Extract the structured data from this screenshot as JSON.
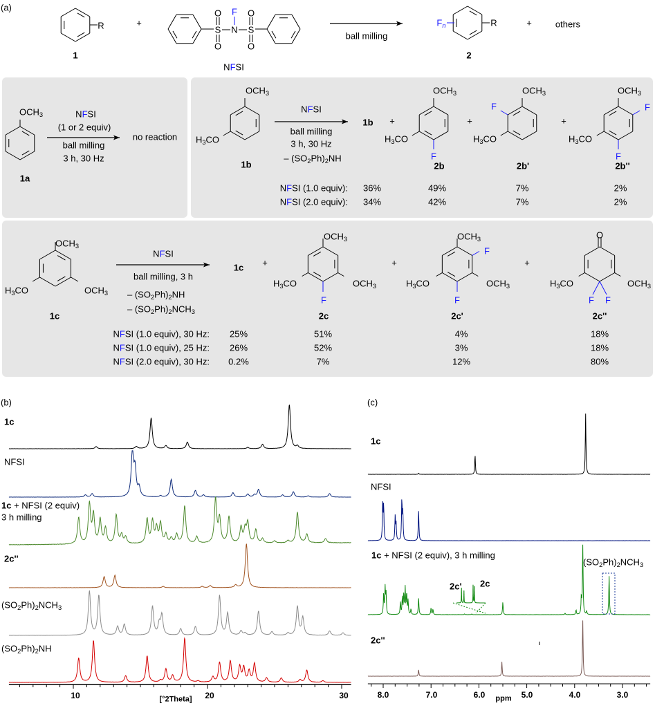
{
  "figure": {
    "panel_a_label": "(a)",
    "panel_b_label": "(b)",
    "panel_c_label": "(c)"
  },
  "general_scheme": {
    "reactant_R": "R",
    "reactant_label": "1",
    "plus1": "+",
    "nfsi_atoms": {
      "S1": "S",
      "N": "N",
      "S2": "S",
      "O1": "O",
      "O2": "O",
      "O3": "O",
      "O4": "O",
      "F": "F"
    },
    "nfsi_label": "NFSI",
    "arrow_condition": "ball milling",
    "product_Fn": "Fn",
    "product_R": "R",
    "product_label": "2",
    "plus2": "+",
    "others": "others"
  },
  "anisole_box": {
    "substituent": "OCH3",
    "reagent": "NFSI",
    "equiv": "(1 or 2 equiv)",
    "cond1": "ball milling",
    "cond2": "3 h, 30 Hz",
    "result": "no reaction",
    "label": "1a"
  },
  "dimethoxy_box": {
    "sm_top": "OCH3",
    "sm_left": "H3CO",
    "sm_label": "1b",
    "reagent": "NFSI",
    "cond1": "ball milling",
    "cond2": "3 h, 30 Hz",
    "cond3": "– (SO2Ph)2NH",
    "recovered": "1b",
    "plus": "+",
    "products": [
      {
        "label": "2b",
        "top": "OCH3",
        "left": "H3CO",
        "F1": "F"
      },
      {
        "label": "2b'",
        "top": "OCH3",
        "left": "H3CO",
        "F1": "F"
      },
      {
        "label": "2b''",
        "top": "OCH3",
        "left": "H3CO",
        "F1": "F",
        "F2": "F"
      }
    ],
    "rows": [
      {
        "label": "NFSI (1.0 equiv):",
        "values": [
          "36%",
          "49%",
          "7%",
          "2%"
        ]
      },
      {
        "label": "NFSI (2.0 equiv):",
        "values": [
          "34%",
          "42%",
          "7%",
          "2%"
        ]
      }
    ]
  },
  "trimethoxy_box": {
    "sm_top": "OCH3",
    "sm_left": "H3CO",
    "sm_right": "OCH3",
    "sm_label": "1c",
    "reagent": "NFSI",
    "cond1": "ball milling, 3 h",
    "cond2": "– (SO2Ph)2NH",
    "cond3": "– (SO2Ph)2NCH3",
    "recovered": "1c",
    "plus": "+",
    "products": [
      {
        "label": "2c",
        "top": "OCH3",
        "left": "H3CO",
        "right": "OCH3",
        "F1": "F"
      },
      {
        "label": "2c'",
        "top": "OCH3",
        "left": "H3CO",
        "right": "OCH3",
        "F1": "F",
        "F2": "F"
      },
      {
        "label": "2c''",
        "top": "O",
        "left": "H3CO",
        "right": "OCH3",
        "F1": "F",
        "F2": "F"
      }
    ],
    "rows": [
      {
        "label": "NFSI (1.0 equiv), 30 Hz:",
        "values": [
          "25%",
          "51%",
          "4%",
          "18%"
        ]
      },
      {
        "label": "NFSI (1.0 equiv), 25 Hz:",
        "values": [
          "26%",
          "52%",
          "3%",
          "18%"
        ]
      },
      {
        "label": "NFSI (2.0 equiv), 30 Hz:",
        "values": [
          "0.2%",
          "7%",
          "12%",
          "80%"
        ]
      }
    ]
  },
  "colors": {
    "fluorine": "#1a1aff",
    "panel_bg": "#e6e6e6"
  },
  "chart_data": [
    {
      "type": "line",
      "title": "",
      "xlabel": "[°2Theta]",
      "xlim": [
        5.2,
        30.7
      ],
      "xticks": [
        10,
        20,
        30
      ],
      "grid": false,
      "series": [
        {
          "name": "1c",
          "color": "#000000",
          "peaks": [
            [
              11.7,
              0.05
            ],
            [
              14.7,
              0.05
            ],
            [
              15.8,
              0.7
            ],
            [
              16.9,
              0.07
            ],
            [
              18.5,
              0.15
            ],
            [
              23.0,
              0.03
            ],
            [
              24.1,
              0.1
            ],
            [
              26.1,
              1.0
            ],
            [
              26.7,
              0.06
            ]
          ]
        },
        {
          "name": "NFSI",
          "color": "#0d2a7a",
          "peaks": [
            [
              10.9,
              0.05
            ],
            [
              11.4,
              0.08
            ],
            [
              14.4,
              1.0
            ],
            [
              14.6,
              0.6
            ],
            [
              14.9,
              0.2
            ],
            [
              16.5,
              0.03
            ],
            [
              17.3,
              0.4
            ],
            [
              19.1,
              0.15
            ],
            [
              19.7,
              0.05
            ],
            [
              21.9,
              0.1
            ],
            [
              23.0,
              0.07
            ],
            [
              23.5,
              0.05
            ],
            [
              23.8,
              0.17
            ],
            [
              25.6,
              0.05
            ],
            [
              26.4,
              0.12
            ],
            [
              27.5,
              0.03
            ],
            [
              29.1,
              0.08
            ]
          ]
        },
        {
          "name": "1c + NFSI (2 equiv) 3 h milling",
          "label_line1": "1c + NFSI (2 equiv)",
          "label_line2": "3 h milling",
          "color": "#4e8a2e",
          "peaks": [
            [
              10.4,
              0.6
            ],
            [
              11.2,
              0.9
            ],
            [
              11.5,
              0.65
            ],
            [
              12.0,
              0.55
            ],
            [
              12.4,
              0.35
            ],
            [
              13.2,
              0.65
            ],
            [
              13.6,
              0.2
            ],
            [
              13.9,
              0.15
            ],
            [
              15.5,
              0.55
            ],
            [
              15.9,
              0.5
            ],
            [
              16.2,
              0.35
            ],
            [
              16.5,
              0.45
            ],
            [
              16.9,
              0.2
            ],
            [
              17.3,
              0.12
            ],
            [
              17.7,
              0.2
            ],
            [
              18.3,
              0.85
            ],
            [
              19.2,
              0.15
            ],
            [
              20.6,
              1.0
            ],
            [
              20.9,
              0.55
            ],
            [
              21.6,
              0.6
            ],
            [
              22.5,
              0.35
            ],
            [
              22.8,
              0.3
            ],
            [
              23.0,
              0.45
            ],
            [
              23.6,
              0.3
            ],
            [
              24.1,
              0.1
            ],
            [
              25.0,
              0.05
            ],
            [
              26.0,
              0.05
            ],
            [
              26.7,
              0.7
            ],
            [
              27.4,
              0.2
            ],
            [
              28.8,
              0.1
            ]
          ]
        },
        {
          "name": "2c''",
          "color": "#a0521e",
          "peaks": [
            [
              12.3,
              0.25
            ],
            [
              13.1,
              0.28
            ],
            [
              16.7,
              0.03
            ],
            [
              19.6,
              0.03
            ],
            [
              20.2,
              0.05
            ],
            [
              22.1,
              0.06
            ],
            [
              22.9,
              1.0
            ]
          ]
        },
        {
          "name": "(SO2Ph)2NCH3",
          "color": "#8c8c8c",
          "peaks": [
            [
              11.2,
              1.0
            ],
            [
              11.9,
              0.9
            ],
            [
              13.3,
              0.2
            ],
            [
              13.8,
              0.25
            ],
            [
              15.9,
              0.65
            ],
            [
              16.4,
              0.25
            ],
            [
              16.6,
              0.45
            ],
            [
              18.0,
              0.15
            ],
            [
              19.1,
              0.2
            ],
            [
              20.9,
              0.9
            ],
            [
              21.5,
              0.5
            ],
            [
              22.5,
              0.1
            ],
            [
              22.8,
              0.05
            ],
            [
              23.8,
              0.55
            ],
            [
              24.8,
              0.08
            ],
            [
              26.0,
              0.05
            ],
            [
              26.7,
              0.65
            ],
            [
              27.1,
              0.4
            ],
            [
              29.1,
              0.1
            ],
            [
              30.1,
              0.06
            ]
          ]
        },
        {
          "name": "(SO2Ph)2NH",
          "color": "#d40000",
          "peaks": [
            [
              10.4,
              0.55
            ],
            [
              11.5,
              0.95
            ],
            [
              13.9,
              0.15
            ],
            [
              15.5,
              0.6
            ],
            [
              16.5,
              0.04
            ],
            [
              16.9,
              0.3
            ],
            [
              17.4,
              0.15
            ],
            [
              18.3,
              1.0
            ],
            [
              19.3,
              0.03
            ],
            [
              20.4,
              0.12
            ],
            [
              20.9,
              0.45
            ],
            [
              21.7,
              0.48
            ],
            [
              22.4,
              0.35
            ],
            [
              22.7,
              0.33
            ],
            [
              23.1,
              0.25
            ],
            [
              23.5,
              0.42
            ],
            [
              24.4,
              0.1
            ],
            [
              25.5,
              0.1
            ],
            [
              26.9,
              0.06
            ],
            [
              27.4,
              0.28
            ],
            [
              28.6,
              0.04
            ]
          ]
        }
      ]
    },
    {
      "type": "line",
      "title": "",
      "xlabel": "ppm",
      "xlim": [
        8.32,
        2.42
      ],
      "xticks": [
        8.0,
        7.0,
        6.0,
        5.0,
        4.0,
        3.0
      ],
      "xtick_labels": [
        "8.0",
        "7.0",
        "6.0",
        "5.0",
        "4.0",
        "3.0"
      ],
      "grid": false,
      "series": [
        {
          "name": "1c",
          "color": "#000000",
          "peaks": [
            [
              7.26,
              0.02
            ],
            [
              6.08,
              0.32
            ],
            [
              3.77,
              1.0
            ]
          ]
        },
        {
          "name": "NFSI",
          "color": "#00137f",
          "peaks": [
            [
              8.01,
              0.93
            ],
            [
              7.99,
              0.85
            ],
            [
              7.75,
              0.59
            ],
            [
              7.73,
              0.41
            ],
            [
              7.61,
              1.0
            ],
            [
              7.59,
              0.69
            ],
            [
              7.26,
              0.78
            ]
          ]
        },
        {
          "name": "1c + NFSI (2 equiv), 3 h milling",
          "color": "#138a13",
          "peaks": [
            [
              7.99,
              0.3
            ],
            [
              7.96,
              0.38
            ],
            [
              7.94,
              0.3
            ],
            [
              7.64,
              0.18
            ],
            [
              7.6,
              0.24
            ],
            [
              7.57,
              0.3
            ],
            [
              7.54,
              0.38
            ],
            [
              7.51,
              0.3
            ],
            [
              7.48,
              0.2
            ],
            [
              7.42,
              0.08
            ],
            [
              7.26,
              0.25
            ],
            [
              7.0,
              0.1
            ],
            [
              6.96,
              0.08
            ],
            [
              6.3,
              0.01
            ],
            [
              6.15,
              0.01
            ],
            [
              5.5,
              0.18
            ],
            [
              4.2,
              0.02
            ],
            [
              3.97,
              0.07
            ],
            [
              3.86,
              0.25
            ],
            [
              3.83,
              1.0
            ],
            [
              3.75,
              0.05
            ],
            [
              3.28,
              0.57
            ]
          ]
        },
        {
          "name": "2c''",
          "color": "#7a5a55",
          "peaks": [
            [
              7.26,
              0.12
            ],
            [
              5.52,
              0.26
            ],
            [
              3.83,
              1.0
            ]
          ]
        }
      ],
      "annotations": [
        "2c'",
        "2c",
        "(SO2Ph)2NCH3"
      ]
    }
  ]
}
